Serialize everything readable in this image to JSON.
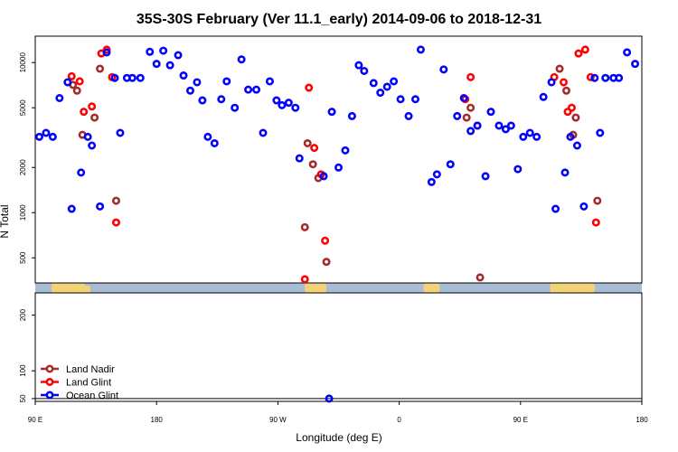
{
  "chart_data": {
    "type": "scatter",
    "title": "35S-30S February (Ver 11.1_early)   2014-09-06 to 2018-12-31",
    "xlabel": "Longitude (deg E)",
    "ylabel": "N Total",
    "x_ticks": [
      {
        "value": 90,
        "label": "90 E"
      },
      {
        "value": 180,
        "label": "180"
      },
      {
        "value": 270,
        "label": "90 W"
      },
      {
        "value": 360,
        "label": "0"
      },
      {
        "value": 450,
        "label": "90 E"
      },
      {
        "value": 540,
        "label": "180"
      }
    ],
    "xlim": [
      90,
      540
    ],
    "upper_panel": {
      "scale": "log",
      "ylim": [
        340,
        15000
      ],
      "y_ticks": [
        500,
        1000,
        2000,
        5000,
        10000
      ]
    },
    "lower_panel": {
      "scale": "linear",
      "ylim": [
        45,
        240
      ],
      "y_ticks": [
        50,
        100,
        200
      ]
    },
    "colors": {
      "land_nadir": "#a52a2a",
      "land_glint": "#ff0000",
      "ocean_glint": "#0000ff",
      "map_ocean": "#a8bcd6",
      "map_land": "#f3d377"
    },
    "series": [
      {
        "name": "Land Nadir",
        "color": "#a52a2a",
        "points": [
          [
            118,
            7100
          ],
          [
            121,
            6500
          ],
          [
            125,
            3300
          ],
          [
            134,
            4300
          ],
          [
            138,
            9100
          ],
          [
            150,
            1200
          ],
          [
            290,
            800
          ],
          [
            292,
            2900
          ],
          [
            296,
            2100
          ],
          [
            300,
            1700
          ],
          [
            306,
            470
          ],
          [
            410,
            4300
          ],
          [
            413,
            5000
          ],
          [
            420,
            370
          ],
          [
            479,
            9100
          ],
          [
            484,
            6500
          ],
          [
            489,
            3300
          ],
          [
            491,
            4300
          ],
          [
            507,
            1200
          ]
        ]
      },
      {
        "name": "Land Glint",
        "color": "#ff0000",
        "points": [
          [
            117,
            8100
          ],
          [
            123,
            7500
          ],
          [
            126,
            4700
          ],
          [
            132,
            5100
          ],
          [
            139,
            11500
          ],
          [
            143,
            12200
          ],
          [
            147,
            8000
          ],
          [
            150,
            860
          ],
          [
            290,
            360
          ],
          [
            293,
            6800
          ],
          [
            297,
            2700
          ],
          [
            302,
            1800
          ],
          [
            305,
            650
          ],
          [
            409,
            5700
          ],
          [
            413,
            8000
          ],
          [
            418,
            3800
          ],
          [
            475,
            8000
          ],
          [
            482,
            7400
          ],
          [
            485,
            4700
          ],
          [
            488,
            5000
          ],
          [
            493,
            11500
          ],
          [
            498,
            12200
          ],
          [
            502,
            8000
          ],
          [
            506,
            860
          ]
        ]
      },
      {
        "name": "Ocean Glint",
        "color": "#0000ff",
        "points": [
          [
            93,
            3200
          ],
          [
            98,
            3400
          ],
          [
            103,
            3200
          ],
          [
            108,
            5800
          ],
          [
            114,
            7400
          ],
          [
            117,
            1060
          ],
          [
            124,
            1850
          ],
          [
            129,
            3200
          ],
          [
            132,
            2800
          ],
          [
            138,
            1100
          ],
          [
            143,
            11700
          ],
          [
            149,
            7900
          ],
          [
            153,
            3400
          ],
          [
            158,
            7900
          ],
          [
            162,
            7900
          ],
          [
            168,
            7900
          ],
          [
            175,
            11800
          ],
          [
            180,
            9800
          ],
          [
            185,
            12000
          ],
          [
            190,
            9600
          ],
          [
            196,
            11200
          ],
          [
            200,
            8200
          ],
          [
            205,
            6500
          ],
          [
            210,
            7400
          ],
          [
            214,
            5600
          ],
          [
            218,
            3200
          ],
          [
            223,
            2900
          ],
          [
            228,
            5700
          ],
          [
            232,
            7500
          ],
          [
            238,
            5000
          ],
          [
            243,
            10500
          ],
          [
            248,
            6600
          ],
          [
            254,
            6600
          ],
          [
            259,
            3400
          ],
          [
            264,
            7500
          ],
          [
            269,
            5600
          ],
          [
            273,
            5200
          ],
          [
            278,
            5400
          ],
          [
            283,
            5000
          ],
          [
            286,
            2300
          ],
          [
            304,
            1750
          ],
          [
            310,
            4700
          ],
          [
            315,
            2000
          ],
          [
            320,
            2600
          ],
          [
            325,
            4400
          ],
          [
            330,
            9600
          ],
          [
            334,
            8800
          ],
          [
            341,
            7300
          ],
          [
            346,
            6300
          ],
          [
            351,
            6900
          ],
          [
            356,
            7500
          ],
          [
            361,
            5700
          ],
          [
            367,
            4400
          ],
          [
            372,
            5700
          ],
          [
            376,
            12200
          ],
          [
            384,
            1600
          ],
          [
            388,
            1800
          ],
          [
            393,
            9000
          ],
          [
            398,
            2100
          ],
          [
            403,
            4400
          ],
          [
            408,
            5800
          ],
          [
            413,
            3500
          ],
          [
            418,
            3800
          ],
          [
            424,
            1750
          ],
          [
            428,
            4700
          ],
          [
            434,
            3800
          ],
          [
            439,
            3600
          ],
          [
            443,
            3800
          ],
          [
            448,
            1950
          ],
          [
            452,
            3200
          ],
          [
            457,
            3400
          ],
          [
            462,
            3200
          ],
          [
            467,
            5900
          ],
          [
            473,
            7400
          ],
          [
            476,
            1060
          ],
          [
            483,
            1850
          ],
          [
            487,
            3200
          ],
          [
            492,
            2800
          ],
          [
            497,
            1100
          ],
          [
            505,
            7900
          ],
          [
            509,
            3400
          ],
          [
            513,
            7900
          ],
          [
            519,
            7900
          ],
          [
            523,
            7900
          ],
          [
            529,
            11700
          ],
          [
            535,
            9800
          ],
          [
            308,
            50
          ]
        ]
      }
    ],
    "legend": {
      "placement": "bottom-left",
      "items": [
        "Land Nadir",
        "Land Glint",
        "Ocean Glint"
      ]
    }
  }
}
